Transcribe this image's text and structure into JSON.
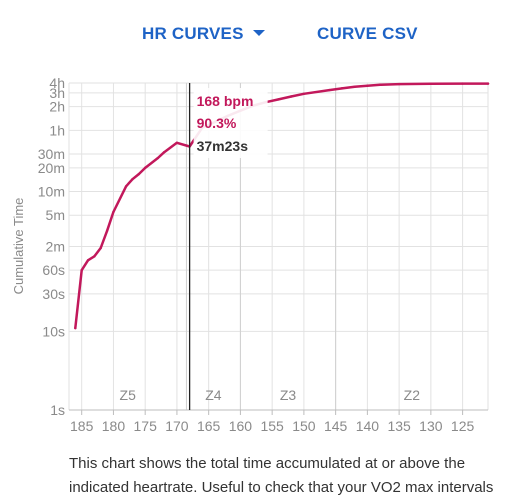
{
  "toolbar": {
    "hr_curves_label": "HR CURVES",
    "curve_csv_label": "CURVE CSV"
  },
  "description": "This chart shows the total time accumulated at or above the indicated heartrate. Useful to check that your VO2 max intervals",
  "colors": {
    "accent": "#1e63c6",
    "curve": "#c2185b",
    "cursor_line": "#222222",
    "grid": "#e2e2e2",
    "axis_text": "#8a8a8a"
  },
  "chart_data": {
    "type": "line",
    "ylabel": "Cumulative Time",
    "xlabel": "",
    "x_axis": {
      "reversed": true,
      "xlim": [
        187,
        121
      ],
      "ticks": [
        185,
        180,
        175,
        170,
        165,
        160,
        155,
        150,
        145,
        140,
        135,
        130,
        125
      ]
    },
    "y_axis": {
      "scale": "log",
      "ylim_seconds": [
        1,
        14400
      ],
      "ticks": [
        {
          "label": "4h",
          "seconds": 14400
        },
        {
          "label": "3h",
          "seconds": 10800
        },
        {
          "label": "2h",
          "seconds": 7200
        },
        {
          "label": "1h",
          "seconds": 3600
        },
        {
          "label": "30m",
          "seconds": 1800
        },
        {
          "label": "20m",
          "seconds": 1200
        },
        {
          "label": "10m",
          "seconds": 600
        },
        {
          "label": "5m",
          "seconds": 300
        },
        {
          "label": "2m",
          "seconds": 120
        },
        {
          "label": "60s",
          "seconds": 60
        },
        {
          "label": "30s",
          "seconds": 30
        },
        {
          "label": "10s",
          "seconds": 10
        },
        {
          "label": "1s",
          "seconds": 1
        }
      ]
    },
    "grid": true,
    "zones": [
      {
        "label": "Z5",
        "from": 187,
        "to": 168.5
      },
      {
        "label": "Z4",
        "from": 168.5,
        "to": 160
      },
      {
        "label": "Z3",
        "from": 160,
        "to": 145
      },
      {
        "label": "Z2",
        "from": 145,
        "to": 121
      }
    ],
    "series": [
      {
        "points": [
          {
            "x": 186,
            "y": 11
          },
          {
            "x": 185,
            "y": 60
          },
          {
            "x": 184,
            "y": 80
          },
          {
            "x": 183,
            "y": 90
          },
          {
            "x": 182,
            "y": 115
          },
          {
            "x": 181,
            "y": 190
          },
          {
            "x": 180,
            "y": 330
          },
          {
            "x": 178,
            "y": 700
          },
          {
            "x": 177,
            "y": 860
          },
          {
            "x": 176,
            "y": 1000
          },
          {
            "x": 175,
            "y": 1200
          },
          {
            "x": 173,
            "y": 1600
          },
          {
            "x": 172,
            "y": 1900
          },
          {
            "x": 170,
            "y": 2500
          },
          {
            "x": 168,
            "y": 2243
          },
          {
            "x": 166,
            "y": 3900
          },
          {
            "x": 164,
            "y": 4600
          },
          {
            "x": 162,
            "y": 5500
          },
          {
            "x": 160,
            "y": 6400
          },
          {
            "x": 158,
            "y": 7400
          },
          {
            "x": 156,
            "y": 8200
          },
          {
            "x": 154,
            "y": 8900
          },
          {
            "x": 152,
            "y": 9700
          },
          {
            "x": 150,
            "y": 10500
          },
          {
            "x": 146,
            "y": 11700
          },
          {
            "x": 144,
            "y": 12300
          },
          {
            "x": 142,
            "y": 12900
          },
          {
            "x": 140,
            "y": 13300
          },
          {
            "x": 138,
            "y": 13650
          },
          {
            "x": 135,
            "y": 13950
          },
          {
            "x": 130,
            "y": 14100
          },
          {
            "x": 125,
            "y": 14150
          },
          {
            "x": 121,
            "y": 14160
          }
        ]
      }
    ],
    "cursor": {
      "hr_value": 168,
      "hr_label": "168 bpm",
      "percent_label": "90.3%",
      "time_label": "37m23s"
    }
  }
}
